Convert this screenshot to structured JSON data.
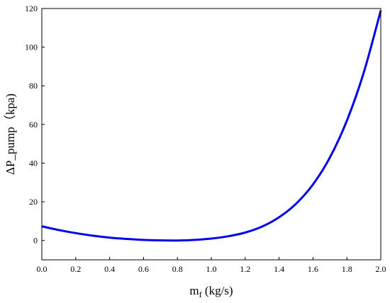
{
  "chart_data": {
    "type": "line",
    "xlabel": "m",
    "xlabel_sub": "f",
    "xlabel_unit": " (kg/s)",
    "ylabel": "ΔP_pump（kpa)",
    "xlim": [
      0.0,
      2.0
    ],
    "ylim": [
      -10,
      120
    ],
    "xticks": [
      "0.0",
      "0.2",
      "0.4",
      "0.6",
      "0.8",
      "1.0",
      "1.2",
      "1.4",
      "1.6",
      "1.8",
      "2.0"
    ],
    "yticks": [
      "0",
      "20",
      "40",
      "60",
      "80",
      "100",
      "120"
    ],
    "grid": false,
    "series": [
      {
        "color": "#0000ee",
        "x": [
          0.0,
          0.1,
          0.2,
          0.3,
          0.4,
          0.5,
          0.6,
          0.7,
          0.8,
          0.9,
          1.0,
          1.1,
          1.2,
          1.3,
          1.4,
          1.5,
          1.6,
          1.7,
          1.8,
          1.9,
          2.0
        ],
        "y": [
          7.3,
          5.4,
          3.8,
          2.5,
          1.5,
          0.8,
          0.3,
          0.05,
          0.0,
          0.3,
          1.0,
          2.2,
          4.1,
          7.2,
          12.0,
          19.0,
          29.0,
          43.0,
          62.0,
          87.0,
          119.0
        ]
      }
    ]
  }
}
